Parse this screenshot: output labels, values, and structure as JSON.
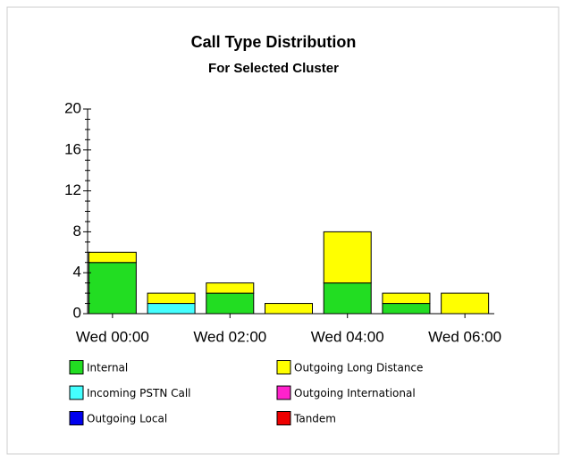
{
  "chart_data": {
    "type": "stacked-bar",
    "title": "Call Type Distribution",
    "subtitle": "For Selected Cluster",
    "categories": [
      "Wed 00:00",
      null,
      "Wed 02:00",
      null,
      "Wed 04:00",
      null,
      "Wed 06:00"
    ],
    "series": [
      {
        "name": "Internal",
        "color": "#22dd22",
        "values": [
          5,
          0,
          2,
          0,
          3,
          1,
          0
        ]
      },
      {
        "name": "Outgoing Long Distance",
        "color": "#ffff00",
        "values": [
          1,
          1,
          1,
          1,
          5,
          1,
          2
        ]
      },
      {
        "name": "Incoming PSTN Call",
        "color": "#44ffff",
        "values": [
          0,
          1,
          0,
          0,
          0,
          0,
          0
        ]
      },
      {
        "name": "Outgoing International",
        "color": "#ff22cc",
        "values": [
          0,
          0,
          0,
          0,
          0,
          0,
          0
        ]
      },
      {
        "name": "Outgoing Local",
        "color": "#0000ee",
        "values": [
          0,
          0,
          0,
          0,
          0,
          0,
          0
        ]
      },
      {
        "name": "Tandem",
        "color": "#ee0000",
        "values": [
          0,
          0,
          0,
          0,
          0,
          0,
          0
        ]
      }
    ],
    "ylim": [
      0,
      20
    ],
    "yticks": [
      0,
      4,
      8,
      12,
      16,
      20
    ]
  }
}
